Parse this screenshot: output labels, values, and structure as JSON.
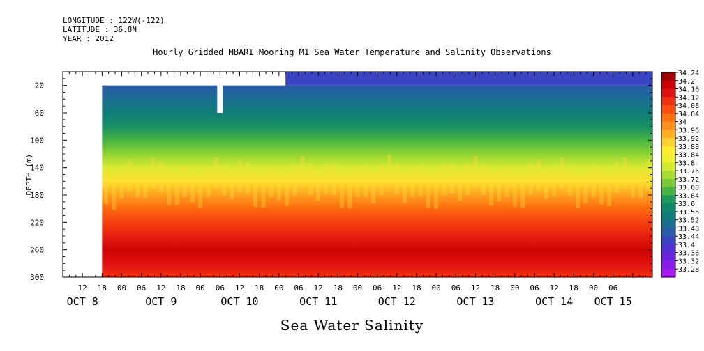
{
  "header": {
    "longitude": "LONGITUDE : 122W(-122)",
    "latitude": "LATITUDE : 36.8N",
    "year": "YEAR : 2012"
  },
  "chart_data": {
    "type": "heatmap",
    "title": "Hourly Gridded MBARI Mooring M1 Sea Water Temperature and Salinity Observations",
    "bottom_title": "Sea Water Salinity",
    "ylabel": "DEPTH (m)",
    "ylim": [
      300,
      0
    ],
    "y_ticks": [
      20,
      60,
      100,
      140,
      180,
      220,
      260,
      300
    ],
    "x_range_hours": [
      "2012-10-08 06:00",
      "2012-10-15 18:00"
    ],
    "x_ticks": [
      {
        "date": "2012-10-08 12:00",
        "label": "12"
      },
      {
        "date": "2012-10-08 18:00",
        "label": "18"
      },
      {
        "date": "2012-10-09 00:00",
        "label": "00"
      },
      {
        "date": "2012-10-09 06:00",
        "label": "06"
      },
      {
        "date": "2012-10-09 12:00",
        "label": "12"
      },
      {
        "date": "2012-10-09 18:00",
        "label": "18"
      },
      {
        "date": "2012-10-10 00:00",
        "label": "00"
      },
      {
        "date": "2012-10-10 06:00",
        "label": "06"
      },
      {
        "date": "2012-10-10 12:00",
        "label": "12"
      },
      {
        "date": "2012-10-10 18:00",
        "label": "18"
      },
      {
        "date": "2012-10-11 00:00",
        "label": "00"
      },
      {
        "date": "2012-10-11 06:00",
        "label": "06"
      },
      {
        "date": "2012-10-11 12:00",
        "label": "12"
      },
      {
        "date": "2012-10-11 18:00",
        "label": "18"
      },
      {
        "date": "2012-10-12 00:00",
        "label": "00"
      },
      {
        "date": "2012-10-12 06:00",
        "label": "06"
      },
      {
        "date": "2012-10-12 12:00",
        "label": "12"
      },
      {
        "date": "2012-10-12 18:00",
        "label": "18"
      },
      {
        "date": "2012-10-13 00:00",
        "label": "00"
      },
      {
        "date": "2012-10-13 06:00",
        "label": "06"
      },
      {
        "date": "2012-10-13 12:00",
        "label": "12"
      },
      {
        "date": "2012-10-13 18:00",
        "label": "18"
      },
      {
        "date": "2012-10-14 00:00",
        "label": "00"
      },
      {
        "date": "2012-10-14 06:00",
        "label": "06"
      },
      {
        "date": "2012-10-14 12:00",
        "label": "12"
      },
      {
        "date": "2012-10-14 18:00",
        "label": "18"
      },
      {
        "date": "2012-10-15 00:00",
        "label": "00"
      },
      {
        "date": "2012-10-15 06:00",
        "label": "06"
      }
    ],
    "day_labels": [
      {
        "date": "2012-10-08 12:00",
        "label": "OCT  8"
      },
      {
        "date": "2012-10-09 12:00",
        "label": "OCT  9"
      },
      {
        "date": "2012-10-10 12:00",
        "label": "OCT 10"
      },
      {
        "date": "2012-10-11 12:00",
        "label": "OCT 11"
      },
      {
        "date": "2012-10-12 12:00",
        "label": "OCT 12"
      },
      {
        "date": "2012-10-13 12:00",
        "label": "OCT 13"
      },
      {
        "date": "2012-10-14 12:00",
        "label": "OCT 14"
      },
      {
        "date": "2012-10-15 06:00",
        "label": "OCT 15"
      }
    ],
    "data_start": "2012-10-08 18:00",
    "top_data_depth": 20,
    "surface_data_start": "2012-10-11 02:00",
    "gap": {
      "date": "2012-10-10 06:00",
      "depth_from": 20,
      "depth_to": 60
    },
    "profile_depths": [
      20,
      40,
      60,
      80,
      100,
      120,
      140,
      160,
      180,
      200,
      220,
      240,
      260,
      280,
      300
    ],
    "mean_salinity_profile": [
      33.48,
      33.52,
      33.57,
      33.62,
      33.68,
      33.74,
      33.81,
      33.9,
      33.98,
      34.05,
      34.1,
      34.14,
      34.19,
      34.16,
      34.12
    ],
    "halocline_depth_range": [
      140,
      185
    ],
    "colorbar": {
      "labels": [
        "34.24",
        "34.2",
        "34.16",
        "34.12",
        "34.08",
        "34.04",
        "34",
        "33.96",
        "33.92",
        "33.88",
        "33.84",
        "33.8",
        "33.76",
        "33.72",
        "33.68",
        "33.64",
        "33.6",
        "33.56",
        "33.52",
        "33.48",
        "33.44",
        "33.4",
        "33.36",
        "33.32",
        "33.28"
      ],
      "colors": [
        "#a00000",
        "#c80000",
        "#e01010",
        "#f03010",
        "#f85010",
        "#ff7010",
        "#ff9020",
        "#ffb020",
        "#ffd030",
        "#ffee30",
        "#f0f030",
        "#d0e830",
        "#a8dc30",
        "#78c838",
        "#48b444",
        "#209a5c",
        "#10866a",
        "#107a7c",
        "#1a6e90",
        "#2a5aa8",
        "#3a44c0",
        "#5030d0",
        "#6a22dc",
        "#8a1ce8",
        "#a818f0"
      ]
    }
  }
}
